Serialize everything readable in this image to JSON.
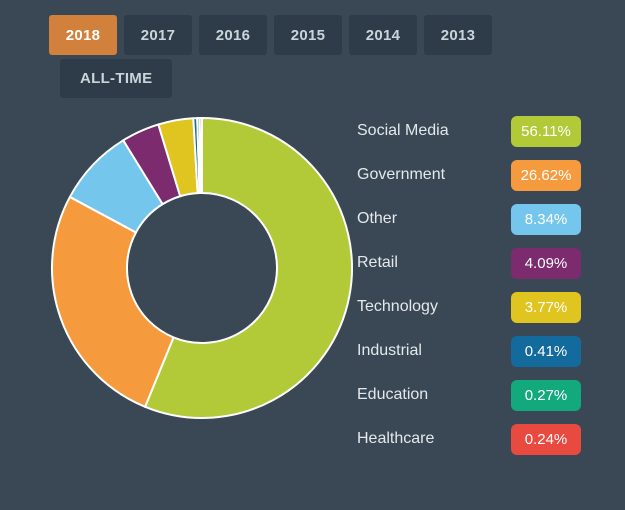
{
  "theme": {
    "background": "#3a4855",
    "tab_bg": "#2e3c49",
    "tab_text": "#ccd4db",
    "tab_active_bg": "#d2813c",
    "tab_active_text": "#ffffff",
    "legend_text": "#e3e8ec",
    "badge_text": "#ffffff",
    "slice_border": "#ffffff"
  },
  "tabs": {
    "row1": [
      {
        "label": "2018",
        "active": true
      },
      {
        "label": "2017",
        "active": false
      },
      {
        "label": "2016",
        "active": false
      },
      {
        "label": "2015",
        "active": false
      },
      {
        "label": "2014",
        "active": false
      },
      {
        "label": "2013",
        "active": false
      }
    ],
    "row2": [
      {
        "label": "ALL-TIME",
        "active": false
      }
    ]
  },
  "chart_data": {
    "type": "pie",
    "subtype": "donut",
    "title": "",
    "categories": [
      "Social Media",
      "Government",
      "Other",
      "Retail",
      "Technology",
      "Industrial",
      "Education",
      "Healthcare"
    ],
    "values": [
      56.11,
      26.62,
      8.34,
      4.09,
      3.77,
      0.41,
      0.27,
      0.24
    ],
    "display_values": [
      "56.11%",
      "26.62%",
      "8.34%",
      "4.09%",
      "3.77%",
      "0.41%",
      "0.27%",
      "0.24%"
    ],
    "colors": [
      "#b2c938",
      "#f69a3e",
      "#75c6ed",
      "#7c2b6e",
      "#e0c420",
      "#136a9c",
      "#12aa7d",
      "#e94a3f"
    ],
    "unit": "%",
    "start_angle_deg": 0,
    "direction": "clockwise",
    "donut_hole_ratio": 0.5,
    "legend_position": "right"
  }
}
